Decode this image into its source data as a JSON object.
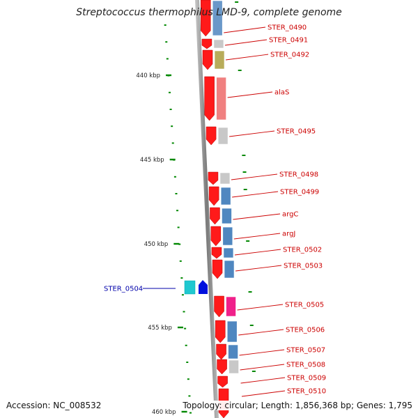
{
  "title": "Streptococcus thermophilus LMD-9, complete genome",
  "footer": {
    "accession": "Accession: NC_008532",
    "stats": "Topology: circular; Length: 1,856,368 bp; Genes: 1,795"
  },
  "colors": {
    "cds": "#ff1a1a",
    "label_forward": "#cc0000",
    "label_reverse": "#0000aa",
    "tick": "#008800",
    "backbone": "#8a8a8a"
  },
  "scale_labels": [
    "440 kbp",
    "445 kbp",
    "450 kbp",
    "455 kbp",
    "460 kbp"
  ],
  "genes": [
    {
      "label": "STER_0490",
      "strand": "forward",
      "cog_color": "#6a98c9"
    },
    {
      "label": "STER_0491",
      "strand": "forward",
      "cog_color": "#c8c8c8"
    },
    {
      "label": "STER_0492",
      "strand": "forward",
      "cog_color": "#b8ac5a"
    },
    {
      "label": "alaS",
      "strand": "forward",
      "cog_color": "#f08080"
    },
    {
      "label": "STER_0495",
      "strand": "forward",
      "cog_color": "#c8c8c8"
    },
    {
      "label": "STER_0498",
      "strand": "forward",
      "cog_color": "#c8c8c8"
    },
    {
      "label": "STER_0499",
      "strand": "forward",
      "cog_color": "#4f87c0"
    },
    {
      "label": "argC",
      "strand": "forward",
      "cog_color": "#4f87c0"
    },
    {
      "label": "argJ",
      "strand": "forward",
      "cog_color": "#4f87c0"
    },
    {
      "label": "STER_0502",
      "strand": "forward",
      "cog_color": "#4f87c0"
    },
    {
      "label": "STER_0503",
      "strand": "forward",
      "cog_color": "#4f87c0"
    },
    {
      "label": "STER_0504",
      "strand": "reverse",
      "cog_color": "#20c8d0"
    },
    {
      "label": "STER_0505",
      "strand": "forward",
      "cog_color": "#f0208a"
    },
    {
      "label": "STER_0506",
      "strand": "forward",
      "cog_color": "#4f87c0"
    },
    {
      "label": "STER_0507",
      "strand": "forward",
      "cog_color": "#4f87c0"
    },
    {
      "label": "STER_0508",
      "strand": "forward",
      "cog_color": "#c8c8c8"
    },
    {
      "label": "STER_0509",
      "strand": "forward",
      "cog_color": ""
    },
    {
      "label": "STER_0510",
      "strand": "forward",
      "cog_color": ""
    }
  ]
}
